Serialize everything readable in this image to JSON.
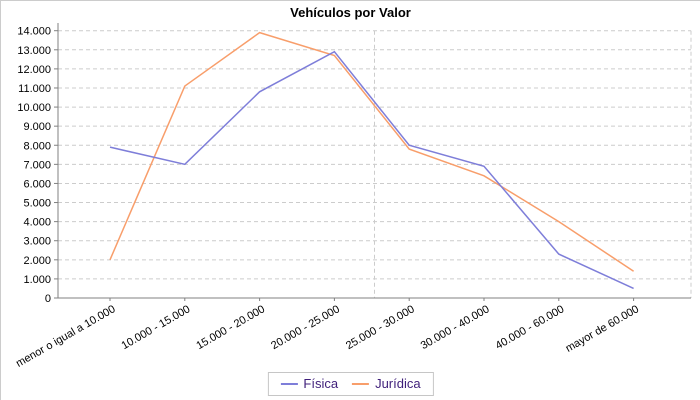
{
  "chart_data": {
    "type": "line",
    "title": "Vehículos por Valor",
    "categories": [
      "menor o igual a 10.000",
      "10.000 - 15.000",
      "15.000 - 20.000",
      "20.000 - 25.000",
      "25.000 - 30.000",
      "30.000 - 40.000",
      "40.000 - 60.000",
      "mayor de 60.000"
    ],
    "series": [
      {
        "name": "Física",
        "color": "#7e7ed9",
        "values": [
          7900,
          7000,
          10800,
          12900,
          8000,
          6900,
          2300,
          500
        ]
      },
      {
        "name": "Jurídica",
        "color": "#f89e6b",
        "values": [
          2000,
          11100,
          13900,
          12700,
          7800,
          6400,
          4000,
          1400
        ]
      }
    ],
    "y_axis": {
      "min": 0,
      "max": 14000,
      "tick_step": 1000,
      "tick_labels": [
        "0",
        "1.000",
        "2.000",
        "3.000",
        "4.000",
        "5.000",
        "6.000",
        "7.000",
        "8.000",
        "9.000",
        "10.000",
        "11.000",
        "12.000",
        "13.000",
        "14.000"
      ]
    },
    "x_axis": {
      "label_rotation_deg": -30
    },
    "grid": {
      "horizontal": true,
      "dashed": true,
      "vertical_boundaries": true
    },
    "legend": {
      "position": "bottom-center",
      "border": true
    },
    "colors": {
      "grid": "#cccccc",
      "axis": "#808080",
      "tick_text": "#000000",
      "title_text": "#000000",
      "legend_text": "#3f1f7a",
      "legend_border": "#c6c6c6",
      "background": "#ffffff"
    }
  }
}
